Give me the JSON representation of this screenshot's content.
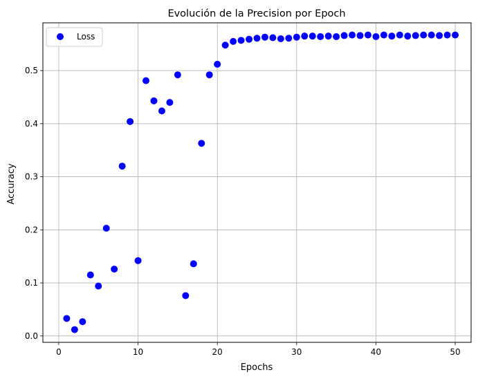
{
  "chart_data": {
    "type": "scatter",
    "title": "Evolución de la Precision por Epoch",
    "xlabel": "Epochs",
    "ylabel": "Accuracy",
    "xlim": [
      -2,
      52
    ],
    "ylim": [
      -0.012,
      0.59
    ],
    "xticks": [
      0,
      10,
      20,
      30,
      40,
      50
    ],
    "yticks": [
      0.0,
      0.1,
      0.2,
      0.3,
      0.4,
      0.5
    ],
    "grid": true,
    "legend_position": "top-left",
    "marker_color": "#0000ff",
    "series": [
      {
        "name": "Loss",
        "x": [
          1,
          2,
          3,
          4,
          5,
          6,
          7,
          8,
          9,
          10,
          11,
          12,
          13,
          14,
          15,
          16,
          17,
          18,
          19,
          20,
          21,
          22,
          23,
          24,
          25,
          26,
          27,
          28,
          29,
          30,
          31,
          32,
          33,
          34,
          35,
          36,
          37,
          38,
          39,
          40,
          41,
          42,
          43,
          44,
          45,
          46,
          47,
          48,
          49,
          50
        ],
        "y": [
          0.033,
          0.012,
          0.027,
          0.115,
          0.094,
          0.203,
          0.126,
          0.32,
          0.404,
          0.142,
          0.481,
          0.443,
          0.424,
          0.44,
          0.492,
          0.076,
          0.136,
          0.363,
          0.492,
          0.512,
          0.548,
          0.555,
          0.557,
          0.559,
          0.561,
          0.563,
          0.562,
          0.56,
          0.561,
          0.563,
          0.565,
          0.565,
          0.564,
          0.565,
          0.564,
          0.566,
          0.567,
          0.566,
          0.567,
          0.564,
          0.567,
          0.565,
          0.567,
          0.565,
          0.566,
          0.567,
          0.567,
          0.566,
          0.567,
          0.567
        ]
      }
    ]
  }
}
